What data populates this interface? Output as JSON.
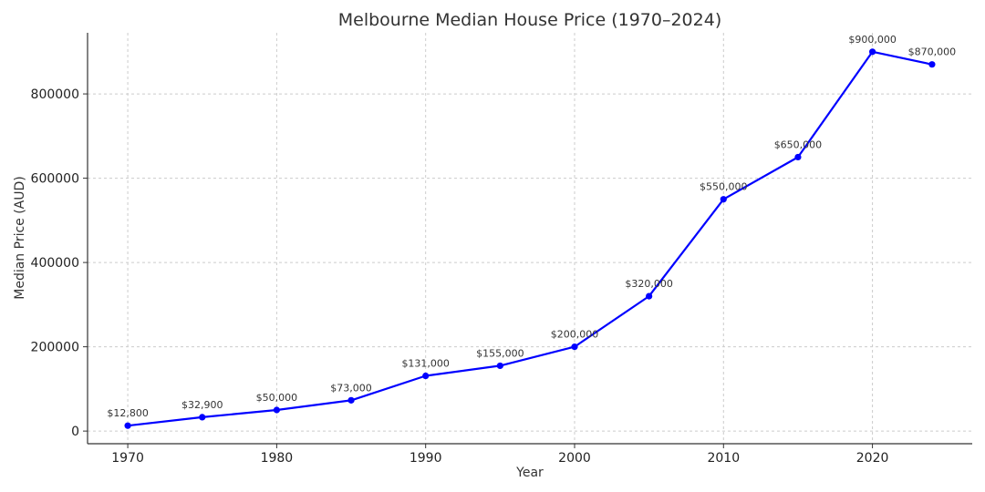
{
  "chart_data": {
    "type": "line",
    "title": "Melbourne Median House Price (1970–2024)",
    "xlabel": "Year",
    "ylabel": "Median Price (AUD)",
    "xlim": [
      1967.3,
      2026.7
    ],
    "ylim": [
      -30000,
      945000
    ],
    "x_ticks": [
      1970,
      1980,
      1990,
      2000,
      2010,
      2020
    ],
    "y_ticks": [
      0,
      200000,
      400000,
      600000,
      800000
    ],
    "grid": true,
    "color": "#0000ff",
    "series": [
      {
        "x": [
          1970,
          1975,
          1980,
          1985,
          1990,
          1995,
          2000,
          2005,
          2010,
          2015,
          2020,
          2024
        ],
        "values": [
          12800,
          32900,
          50000,
          73000,
          131000,
          155000,
          200000,
          320000,
          550000,
          650000,
          900000,
          870000
        ],
        "labels": [
          "$12,800",
          "$32,900",
          "$50,000",
          "$73,000",
          "$131,000",
          "$155,000",
          "$200,000",
          "$320,000",
          "$550,000",
          "$650,000",
          "$900,000",
          "$870,000"
        ]
      }
    ]
  }
}
